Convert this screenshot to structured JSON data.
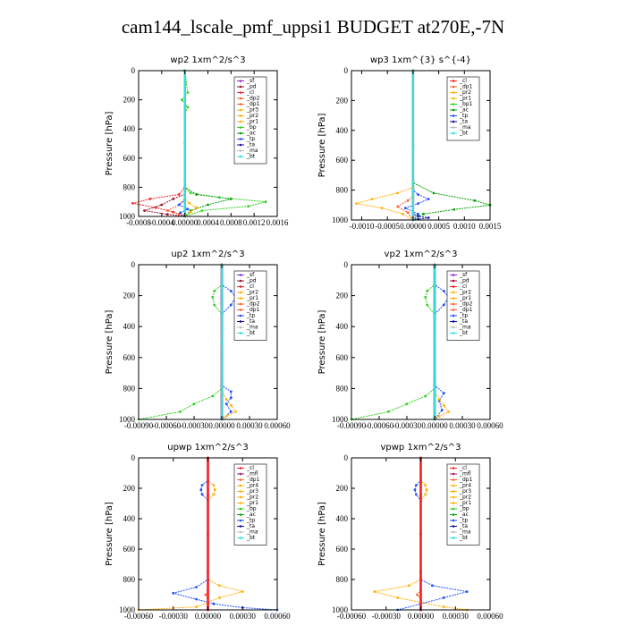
{
  "figure": {
    "title": "cam144_lscale_pmf_uppsi1  BUDGET at270E,-7N"
  },
  "colors": {
    "sf": "#8a2be2",
    "pd": "#9b1030",
    "cl": "#ff2020",
    "dp": "#ff6030",
    "pr": "#ffb000",
    "bp": "#30d020",
    "ac": "#00a000",
    "tp": "#2050ff",
    "ta": "#1010a0",
    "ma": "#c0c0c0",
    "bt": "#30e0e0",
    "mfl": "#a0226a"
  },
  "chart_data": [
    {
      "type": "line",
      "title": "wp2   1xm^2/s^3",
      "ylabel": "Pressure  [hPa]",
      "xlim": [
        -0.0008,
        0.0016
      ],
      "ylim": [
        1000,
        0
      ],
      "xticks": [
        "-0.0008",
        "-0.0004",
        "0.00000",
        "0.0004",
        "0.0008",
        "0.0012",
        "0.0016"
      ],
      "xtick_values": [
        -0.0008,
        -0.0004,
        0,
        0.0004,
        0.0008,
        0.0012,
        0.0016
      ],
      "yticks": [
        "0",
        "200",
        "400",
        "600",
        "800",
        "1000"
      ],
      "ytick_values": [
        0,
        200,
        400,
        600,
        800,
        1000
      ],
      "legend": [
        "_sf",
        "_pd",
        "_cl",
        "_dp2",
        "_dp1",
        "_pr3",
        "_pr2",
        "_pr1",
        "_bp",
        "_ac",
        "_tp",
        "_ta",
        "_ma",
        "_bt"
      ],
      "legend_location": "top-right",
      "series": [
        {
          "key": "sf",
          "x": [
            0,
            0,
            0,
            0,
            0
          ],
          "y": [
            0,
            250,
            500,
            750,
            1000
          ]
        },
        {
          "key": "bp",
          "x": [
            0,
            5e-05,
            -5e-05,
            5e-05,
            0,
            0,
            0.0001,
            0.0006,
            0.0014,
            0.0011,
            0.0003,
            0
          ],
          "y": [
            0,
            150,
            200,
            250,
            300,
            800,
            840,
            870,
            900,
            930,
            960,
            1000
          ]
        },
        {
          "key": "ac",
          "x": [
            0,
            0,
            0.0002,
            0.0008,
            0.0004,
            0.0001,
            0
          ],
          "y": [
            0,
            800,
            850,
            880,
            920,
            960,
            1000
          ]
        },
        {
          "key": "cl",
          "x": [
            0,
            0,
            -0.0001,
            -0.0006,
            -0.0009,
            -0.0005,
            -0.0002,
            0
          ],
          "y": [
            0,
            800,
            850,
            880,
            910,
            940,
            970,
            1000
          ]
        },
        {
          "key": "pd",
          "x": [
            0,
            0,
            -0.0002,
            -0.0004,
            -0.0007,
            -0.0003,
            0
          ],
          "y": [
            0,
            850,
            880,
            920,
            960,
            985,
            1000
          ]
        },
        {
          "key": "dp",
          "x": [
            0,
            0,
            -0.0001,
            -0.0003,
            -0.0001,
            0
          ],
          "y": [
            0,
            880,
            920,
            960,
            985,
            1000
          ]
        },
        {
          "key": "pr",
          "x": [
            0,
            0,
            8e-05,
            0.0002,
            0.0001,
            0
          ],
          "y": [
            0,
            880,
            910,
            940,
            970,
            1000
          ]
        },
        {
          "key": "tp",
          "x": [
            0,
            0,
            -0.0001,
            5e-05,
            -8e-05,
            0
          ],
          "y": [
            0,
            890,
            920,
            950,
            975,
            1000
          ]
        },
        {
          "key": "bt",
          "x": [
            0,
            0,
            0
          ],
          "y": [
            0,
            500,
            1000
          ]
        }
      ]
    },
    {
      "type": "line",
      "title": "wp3   1xm^{3} s^{-4}",
      "ylabel": "Pressure  [hPa]",
      "xlim": [
        -0.0012,
        0.0015
      ],
      "ylim": [
        1000,
        0
      ],
      "xticks": [
        "-0.0010",
        "-0.0005",
        "0.00000",
        "0.0005",
        "0.0010",
        "0.0015"
      ],
      "xtick_values": [
        -0.001,
        -0.0005,
        0,
        0.0005,
        0.001,
        0.0015
      ],
      "yticks": [
        "0",
        "200",
        "400",
        "600",
        "800",
        "1000"
      ],
      "ytick_values": [
        0,
        200,
        400,
        600,
        800,
        1000
      ],
      "legend": [
        "_cl",
        "_dp1",
        "_pr2",
        "_pr1",
        "_bp1",
        "_ac",
        "_tp",
        "_ta",
        "_ma",
        "_bt"
      ],
      "legend_location": "top-right",
      "series": [
        {
          "key": "cl",
          "x": [
            0,
            0,
            0
          ],
          "y": [
            0,
            500,
            1000
          ]
        },
        {
          "key": "ac",
          "x": [
            0,
            0,
            0.0004,
            0.0012,
            0.0015,
            0.0008,
            0.0002,
            0
          ],
          "y": [
            0,
            750,
            820,
            870,
            900,
            930,
            960,
            1000
          ]
        },
        {
          "key": "pr",
          "x": [
            0,
            0,
            -0.0003,
            -0.0008,
            -0.0011,
            -0.0006,
            -0.0002,
            0
          ],
          "y": [
            0,
            780,
            820,
            860,
            890,
            920,
            960,
            1000
          ]
        },
        {
          "key": "tp",
          "x": [
            0,
            0,
            0.0001,
            0.0003,
            0.0001,
            -0.00015,
            0.0001,
            0
          ],
          "y": [
            0,
            800,
            830,
            860,
            890,
            920,
            960,
            1000
          ]
        },
        {
          "key": "dp",
          "x": [
            0,
            0,
            -0.0001,
            -0.0003,
            -0.0001,
            0
          ],
          "y": [
            0,
            840,
            870,
            910,
            950,
            1000
          ]
        },
        {
          "key": "ta",
          "x": [
            0,
            0,
            0.0001,
            0.0003,
            0.0001,
            0
          ],
          "y": [
            0,
            960,
            975,
            985,
            995,
            1000
          ]
        },
        {
          "key": "bt",
          "x": [
            0,
            0,
            0
          ],
          "y": [
            0,
            500,
            1000
          ]
        }
      ]
    },
    {
      "type": "line",
      "title": "up2   1xm^2/s^3",
      "ylabel": "Pressure  [hPa]",
      "xlim": [
        -0.0009,
        0.0006
      ],
      "ylim": [
        1000,
        0
      ],
      "xticks": [
        "-0.00090",
        "-0.00060",
        "-0.00030",
        "0.00000",
        "0.00030",
        "0.00060"
      ],
      "xtick_values": [
        -0.0009,
        -0.0006,
        -0.0003,
        0,
        0.0003,
        0.0006
      ],
      "yticks": [
        "0",
        "200",
        "400",
        "600",
        "800",
        "1000"
      ],
      "ytick_values": [
        0,
        200,
        400,
        600,
        800,
        1000
      ],
      "legend": [
        "_sf",
        "_pd",
        "_cl",
        "_pr2",
        "_pr1",
        "_dp2",
        "_dp1",
        "_tp",
        "_ta",
        "_ma",
        "_bt"
      ],
      "legend_location": "top-right",
      "series": [
        {
          "key": "sf",
          "x": [
            0,
            0,
            0,
            0,
            0
          ],
          "y": [
            0,
            250,
            500,
            750,
            1000
          ]
        },
        {
          "key": "tp",
          "x": [
            0,
            0,
            0.0001,
            0.00015,
            0.0001,
            0,
            0,
            0.0001,
            0.0001,
            5e-05,
            0.0001,
            0
          ],
          "y": [
            0,
            130,
            170,
            210,
            260,
            320,
            780,
            820,
            860,
            900,
            950,
            1000
          ]
        },
        {
          "key": "bp",
          "x": [
            0,
            0,
            -8e-05,
            -0.0001,
            -8e-05,
            0,
            0,
            -0.0001,
            -0.0003,
            -0.00045,
            -0.0009
          ],
          "y": [
            0,
            130,
            170,
            210,
            260,
            320,
            800,
            850,
            900,
            950,
            1000
          ]
        },
        {
          "key": "pr",
          "x": [
            0,
            0,
            5e-05,
            0.0001,
            0.00015,
            5e-05,
            0
          ],
          "y": [
            0,
            820,
            870,
            910,
            950,
            980,
            1000
          ]
        },
        {
          "key": "cl",
          "x": [
            0,
            0,
            0,
            0
          ],
          "y": [
            0,
            600,
            900,
            1000
          ]
        },
        {
          "key": "pd",
          "x": [
            0,
            0,
            0
          ],
          "y": [
            0,
            500,
            1000
          ]
        },
        {
          "key": "bt",
          "x": [
            0,
            0,
            0
          ],
          "y": [
            0,
            500,
            1000
          ]
        }
      ]
    },
    {
      "type": "line",
      "title": "vp2   1xm^2/s^3",
      "ylabel": "Pressure  [hPa]",
      "xlim": [
        -0.0009,
        0.0006
      ],
      "ylim": [
        1000,
        0
      ],
      "xticks": [
        "-0.00090",
        "-0.00060",
        "-0.00030",
        "0.00000",
        "0.00030",
        "0.00060"
      ],
      "xtick_values": [
        -0.0009,
        -0.0006,
        -0.0003,
        0,
        0.0003,
        0.0006
      ],
      "yticks": [
        "0",
        "200",
        "400",
        "600",
        "800",
        "1000"
      ],
      "ytick_values": [
        0,
        200,
        400,
        600,
        800,
        1000
      ],
      "legend": [
        "_sf",
        "_pd",
        "_cl",
        "_pr2",
        "_pr1",
        "_dp2",
        "_dp1",
        "_tp",
        "_ta",
        "_ma",
        "_bt"
      ],
      "legend_location": "top-right",
      "series": [
        {
          "key": "sf",
          "x": [
            0,
            0,
            0,
            0,
            0
          ],
          "y": [
            0,
            250,
            500,
            750,
            1000
          ]
        },
        {
          "key": "tp",
          "x": [
            0,
            0,
            0.0001,
            0.00015,
            0.0001,
            0,
            0,
            0.0001,
            5e-05,
            8e-05,
            0
          ],
          "y": [
            0,
            130,
            170,
            210,
            260,
            320,
            780,
            830,
            880,
            940,
            1000
          ]
        },
        {
          "key": "bp",
          "x": [
            0,
            0,
            -8e-05,
            -0.0001,
            -8e-05,
            0,
            0,
            -0.0001,
            -0.0003,
            -0.0005,
            -0.0009
          ],
          "y": [
            0,
            130,
            170,
            210,
            260,
            320,
            800,
            850,
            900,
            950,
            1000
          ]
        },
        {
          "key": "pr",
          "x": [
            0,
            0,
            5e-05,
            0.0001,
            0.00015,
            5e-05,
            0
          ],
          "y": [
            0,
            820,
            870,
            910,
            950,
            980,
            1000
          ]
        },
        {
          "key": "pd",
          "x": [
            0,
            0,
            0
          ],
          "y": [
            0,
            500,
            1000
          ]
        },
        {
          "key": "bt",
          "x": [
            0,
            0,
            0
          ],
          "y": [
            0,
            500,
            1000
          ]
        }
      ]
    },
    {
      "type": "line",
      "title": "upwp   1xm^2/s^3",
      "ylabel": "Pressure  [hPa]",
      "xlim": [
        -0.0006,
        0.0006
      ],
      "ylim": [
        1000,
        0
      ],
      "xticks": [
        "-0.00060",
        "-0.00030",
        "0.00000",
        "0.00030",
        "0.00060"
      ],
      "xtick_values": [
        -0.0006,
        -0.0003,
        0,
        0.0003,
        0.0006
      ],
      "yticks": [
        "0",
        "200",
        "400",
        "600",
        "800",
        "1000"
      ],
      "ytick_values": [
        0,
        200,
        400,
        600,
        800,
        1000
      ],
      "legend": [
        "_cl",
        "_mfl",
        "_dp1",
        "_pr4",
        "_pr3",
        "_pr2",
        "_pr1",
        "_bp",
        "_ac",
        "_tp",
        "_ta",
        "_ma",
        "_bt"
      ],
      "legend_location": "top-right",
      "series": [
        {
          "key": "mfl",
          "x": [
            0,
            0,
            0,
            0,
            0
          ],
          "y": [
            0,
            250,
            500,
            750,
            1000
          ]
        },
        {
          "key": "pr",
          "x": [
            0,
            0,
            5e-05,
            6e-05,
            5e-05,
            0,
            0,
            0.0001,
            0.0003,
            0.0001,
            0,
            -0.0001,
            -0.0006
          ],
          "y": [
            0,
            150,
            180,
            210,
            240,
            280,
            800,
            840,
            880,
            920,
            950,
            980,
            1000
          ]
        },
        {
          "key": "tp",
          "x": [
            0,
            0,
            -5e-05,
            -6e-05,
            -5e-05,
            0,
            0,
            -0.0001,
            -0.0003,
            -0.0001,
            5e-05,
            0.0003,
            0.0006
          ],
          "y": [
            0,
            150,
            180,
            210,
            240,
            280,
            800,
            850,
            890,
            930,
            960,
            985,
            1000
          ]
        },
        {
          "key": "dp",
          "x": [
            0,
            0,
            -2e-05,
            0,
            0
          ],
          "y": [
            0,
            880,
            900,
            920,
            1000
          ]
        },
        {
          "key": "cl",
          "x": [
            0,
            0,
            0
          ],
          "y": [
            0,
            500,
            1000
          ]
        }
      ]
    },
    {
      "type": "line",
      "title": "vpwp   1xm^2/s^3",
      "ylabel": "Pressure  [hPa]",
      "xlim": [
        -0.0006,
        0.0006
      ],
      "ylim": [
        1000,
        0
      ],
      "xticks": [
        "-0.00060",
        "-0.00030",
        "0.00000",
        "0.00030",
        "0.00060"
      ],
      "xtick_values": [
        -0.0006,
        -0.0003,
        0,
        0.0003,
        0.0006
      ],
      "yticks": [
        "0",
        "200",
        "400",
        "600",
        "800",
        "1000"
      ],
      "ytick_values": [
        0,
        200,
        400,
        600,
        800,
        1000
      ],
      "legend": [
        "_cl",
        "_mfl",
        "_dp1",
        "_pr4",
        "_pr3",
        "_pr2",
        "_pr1",
        "_bp",
        "_ac",
        "_tp",
        "_ta",
        "_ma",
        "_bt"
      ],
      "legend_location": "top-right",
      "series": [
        {
          "key": "mfl",
          "x": [
            0,
            0,
            0,
            0,
            0
          ],
          "y": [
            0,
            250,
            500,
            750,
            1000
          ]
        },
        {
          "key": "pr",
          "x": [
            0,
            0,
            4e-05,
            5e-05,
            4e-05,
            0,
            0,
            -0.0001,
            -0.0004,
            -0.0002,
            0,
            0.0002,
            0.0004
          ],
          "y": [
            0,
            150,
            180,
            210,
            240,
            280,
            800,
            840,
            880,
            920,
            950,
            980,
            1000
          ]
        },
        {
          "key": "tp",
          "x": [
            0,
            0,
            -4e-05,
            -5e-05,
            -4e-05,
            0,
            0,
            0.0001,
            0.0004,
            0.0002,
            0,
            -0.0002
          ],
          "y": [
            0,
            150,
            180,
            210,
            240,
            280,
            800,
            840,
            880,
            920,
            960,
            1000
          ]
        },
        {
          "key": "dp",
          "x": [
            0,
            0,
            -3e-05,
            0,
            0
          ],
          "y": [
            0,
            870,
            900,
            930,
            1000
          ]
        },
        {
          "key": "cl",
          "x": [
            0,
            0,
            0
          ],
          "y": [
            0,
            500,
            1000
          ]
        }
      ]
    }
  ]
}
